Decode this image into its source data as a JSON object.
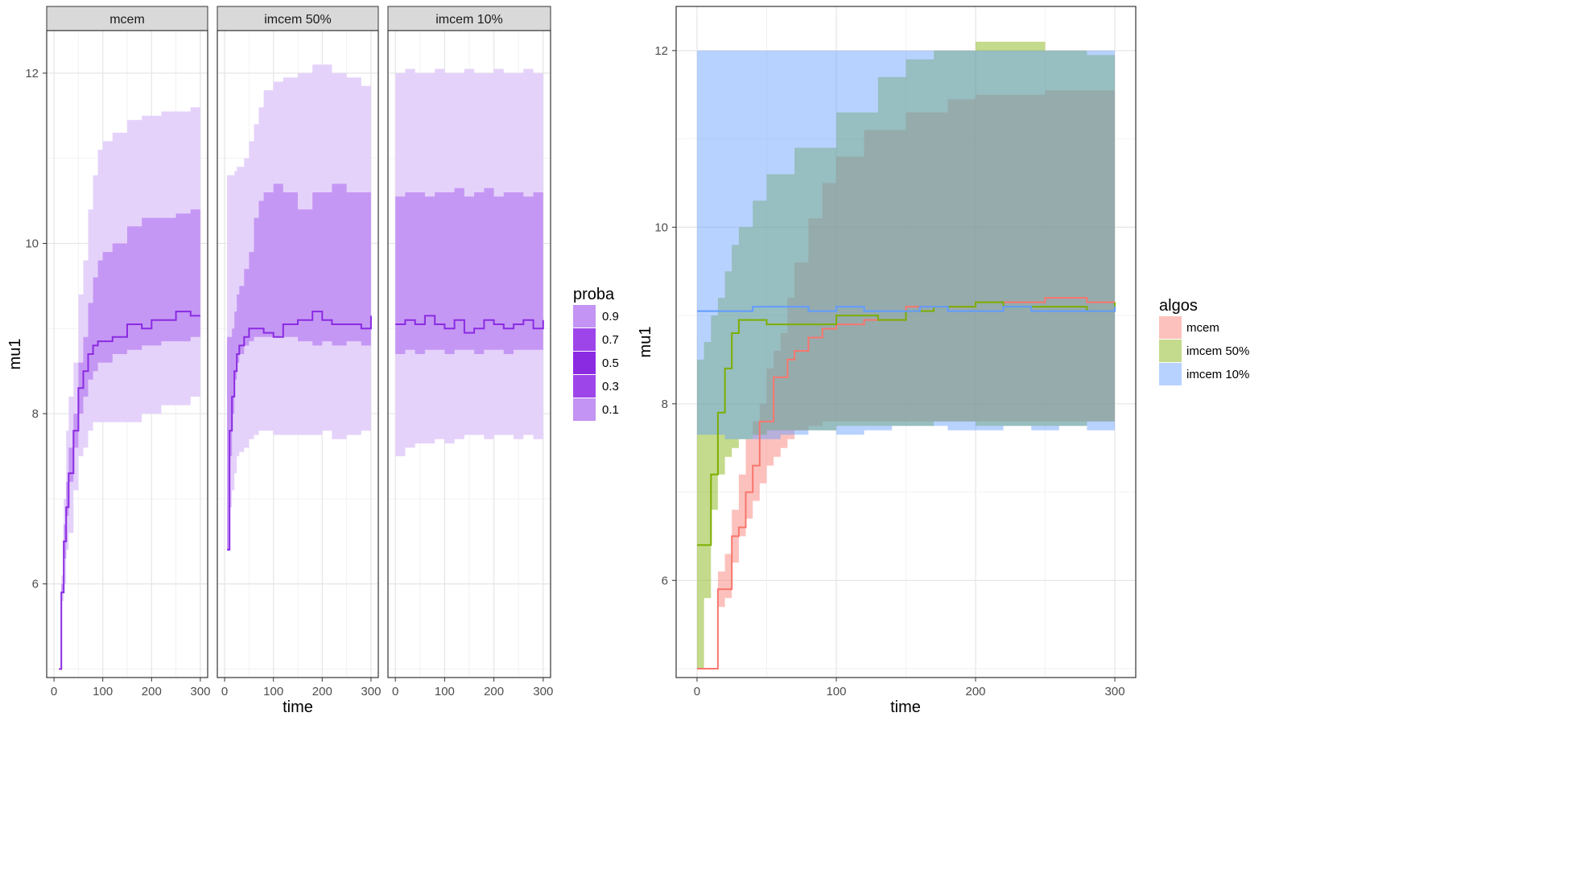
{
  "chart_data": [
    {
      "type": "area",
      "facets": [
        "mcem",
        "imcem 50%",
        "imcem 10%"
      ],
      "xlabel": "time",
      "ylabel": "mu1",
      "xlim": [
        -15,
        315
      ],
      "ylim": [
        4.9,
        12.5
      ],
      "xticks": [
        0,
        100,
        200,
        300
      ],
      "yticks": [
        6,
        8,
        10,
        12
      ],
      "grid": true,
      "legend": {
        "title": "proba",
        "position": "right",
        "entries": [
          "0.9",
          "0.7",
          "0.5",
          "0.3",
          "0.1"
        ],
        "colors": [
          "#c394f3",
          "#9e45e9",
          "#8a2be2",
          "#9e45e9",
          "#c394f3"
        ]
      },
      "band_colors": {
        "outer": "#e4d0fa",
        "inner": "#c394f3",
        "median": "#8a2be2"
      },
      "series": [
        {
          "facet": "mcem",
          "x": [
            10,
            15,
            20,
            25,
            30,
            40,
            50,
            60,
            70,
            80,
            90,
            100,
            120,
            150,
            180,
            200,
            220,
            250,
            280,
            300
          ],
          "p10": [
            5.0,
            5.8,
            6.0,
            6.4,
            6.6,
            7.1,
            7.5,
            7.6,
            7.8,
            7.9,
            7.9,
            7.9,
            7.9,
            7.9,
            8.0,
            8.0,
            8.1,
            8.1,
            8.2,
            8.2
          ],
          "p30": [
            5.0,
            5.9,
            6.3,
            6.8,
            7.2,
            7.6,
            8.0,
            8.2,
            8.4,
            8.5,
            8.6,
            8.6,
            8.7,
            8.75,
            8.8,
            8.8,
            8.85,
            8.85,
            8.9,
            8.9
          ],
          "median": [
            5.0,
            5.9,
            6.5,
            6.9,
            7.3,
            7.8,
            8.3,
            8.5,
            8.7,
            8.8,
            8.85,
            8.85,
            8.9,
            9.05,
            9.0,
            9.1,
            9.1,
            9.2,
            9.15,
            9.15
          ],
          "p70": [
            5.0,
            6.0,
            6.7,
            7.2,
            7.6,
            8.0,
            8.6,
            8.9,
            9.3,
            9.6,
            9.8,
            9.9,
            10.0,
            10.2,
            10.3,
            10.3,
            10.3,
            10.35,
            10.4,
            10.4
          ],
          "p90": [
            5.0,
            6.1,
            7.0,
            7.8,
            8.2,
            8.6,
            9.4,
            9.8,
            10.4,
            10.8,
            11.1,
            11.2,
            11.3,
            11.45,
            11.5,
            11.5,
            11.55,
            11.55,
            11.6,
            11.6
          ]
        },
        {
          "facet": "imcem 50%",
          "x": [
            5,
            10,
            15,
            20,
            25,
            30,
            40,
            50,
            60,
            70,
            80,
            100,
            120,
            150,
            180,
            200,
            220,
            250,
            280,
            300
          ],
          "p10": [
            6.4,
            6.9,
            7.1,
            7.3,
            7.5,
            7.55,
            7.6,
            7.7,
            7.75,
            7.8,
            7.8,
            7.75,
            7.75,
            7.75,
            7.75,
            7.8,
            7.7,
            7.75,
            7.8,
            7.95
          ],
          "p30": [
            6.4,
            7.5,
            8.0,
            8.4,
            8.6,
            8.7,
            8.8,
            8.85,
            8.9,
            8.9,
            8.9,
            8.9,
            8.9,
            8.85,
            8.8,
            8.85,
            8.8,
            8.85,
            8.8,
            8.8
          ],
          "median": [
            6.4,
            7.8,
            8.2,
            8.5,
            8.7,
            8.8,
            8.9,
            9.0,
            9.0,
            9.0,
            8.95,
            8.9,
            9.05,
            9.1,
            9.2,
            9.1,
            9.05,
            9.05,
            9.0,
            9.15
          ],
          "p70": [
            8.9,
            8.9,
            9.0,
            9.2,
            9.4,
            9.5,
            9.7,
            9.9,
            10.3,
            10.5,
            10.6,
            10.7,
            10.6,
            10.4,
            10.6,
            10.6,
            10.7,
            10.6,
            10.6,
            10.6
          ],
          "p90": [
            10.8,
            10.8,
            10.8,
            10.85,
            10.9,
            10.9,
            11.0,
            11.2,
            11.4,
            11.6,
            11.8,
            11.9,
            11.95,
            12.0,
            12.1,
            12.1,
            12.0,
            11.95,
            11.85,
            11.95
          ]
        },
        {
          "facet": "imcem 10%",
          "x": [
            0,
            20,
            40,
            60,
            80,
            100,
            120,
            140,
            160,
            180,
            200,
            220,
            240,
            260,
            280,
            300
          ],
          "p10": [
            7.5,
            7.6,
            7.65,
            7.65,
            7.7,
            7.65,
            7.7,
            7.75,
            7.75,
            7.7,
            7.75,
            7.75,
            7.7,
            7.75,
            7.7,
            7.7
          ],
          "p30": [
            8.7,
            8.75,
            8.7,
            8.75,
            8.75,
            8.7,
            8.75,
            8.75,
            8.7,
            8.75,
            8.75,
            8.7,
            8.75,
            8.75,
            8.75,
            8.75
          ],
          "median": [
            9.05,
            9.1,
            9.05,
            9.15,
            9.05,
            9.0,
            9.1,
            8.95,
            9.0,
            9.1,
            9.05,
            9.0,
            9.05,
            9.1,
            9.0,
            9.1
          ],
          "p70": [
            10.55,
            10.6,
            10.6,
            10.55,
            10.6,
            10.6,
            10.65,
            10.55,
            10.6,
            10.65,
            10.55,
            10.6,
            10.6,
            10.55,
            10.6,
            10.6
          ],
          "p90": [
            12.0,
            12.05,
            12.0,
            12.0,
            12.05,
            12.0,
            12.0,
            12.05,
            12.0,
            12.0,
            12.05,
            12.0,
            12.0,
            12.05,
            12.0,
            12.0
          ]
        }
      ]
    },
    {
      "type": "area",
      "xlabel": "time",
      "ylabel": "mu1",
      "xlim": [
        -15,
        315
      ],
      "ylim": [
        4.9,
        12.5
      ],
      "xticks": [
        0,
        100,
        200,
        300
      ],
      "yticks": [
        6,
        8,
        10,
        12
      ],
      "grid": true,
      "legend": {
        "title": "algos",
        "position": "right",
        "entries": [
          "mcem",
          "imcem 50%",
          "imcem 10%"
        ]
      },
      "series": [
        {
          "name": "mcem",
          "color": "#f8766d",
          "x": [
            0,
            10,
            15,
            20,
            25,
            30,
            35,
            40,
            45,
            50,
            55,
            60,
            65,
            70,
            80,
            90,
            100,
            120,
            150,
            180,
            200,
            250,
            280,
            300
          ],
          "lower": [
            5.0,
            5.0,
            5.7,
            5.8,
            6.2,
            6.5,
            6.7,
            6.9,
            7.1,
            7.3,
            7.4,
            7.5,
            7.6,
            7.7,
            7.75,
            7.8,
            7.8,
            7.8,
            7.8,
            7.8,
            7.8,
            7.8,
            7.8,
            7.8
          ],
          "mid": [
            5.0,
            5.0,
            5.9,
            5.9,
            6.5,
            6.6,
            7.0,
            7.3,
            7.8,
            7.8,
            8.3,
            8.3,
            8.5,
            8.6,
            8.75,
            8.85,
            8.9,
            8.95,
            9.1,
            9.1,
            9.15,
            9.2,
            9.15,
            9.15
          ],
          "upper": [
            5.0,
            5.0,
            6.1,
            6.3,
            6.8,
            7.2,
            7.6,
            7.8,
            8.0,
            8.4,
            8.6,
            8.8,
            9.2,
            9.6,
            10.1,
            10.5,
            10.8,
            11.1,
            11.3,
            11.45,
            11.5,
            11.55,
            11.55,
            11.6
          ]
        },
        {
          "name": "imcem 50%",
          "color": "#7cae00",
          "x": [
            0,
            5,
            10,
            15,
            20,
            25,
            30,
            40,
            50,
            70,
            100,
            130,
            150,
            170,
            200,
            220,
            250,
            280,
            300
          ],
          "lower": [
            5.0,
            5.8,
            6.8,
            7.2,
            7.4,
            7.5,
            7.6,
            7.65,
            7.7,
            7.7,
            7.75,
            7.75,
            7.75,
            7.8,
            7.75,
            7.75,
            7.75,
            7.8,
            7.85
          ],
          "mid": [
            6.4,
            6.4,
            7.2,
            7.9,
            8.4,
            8.8,
            8.95,
            8.95,
            8.9,
            8.9,
            9.0,
            8.95,
            9.05,
            9.1,
            9.15,
            9.1,
            9.1,
            9.05,
            9.15
          ],
          "upper": [
            8.5,
            8.7,
            9.0,
            9.2,
            9.5,
            9.8,
            10.0,
            10.3,
            10.6,
            10.9,
            11.3,
            11.7,
            11.9,
            12.0,
            12.1,
            12.1,
            12.0,
            11.95,
            12.0
          ]
        },
        {
          "name": "imcem 10%",
          "color": "#619cff",
          "x": [
            0,
            20,
            40,
            60,
            80,
            100,
            120,
            140,
            160,
            180,
            200,
            220,
            240,
            260,
            280,
            300
          ],
          "lower": [
            7.65,
            7.6,
            7.6,
            7.65,
            7.7,
            7.65,
            7.7,
            7.75,
            7.75,
            7.7,
            7.7,
            7.75,
            7.7,
            7.75,
            7.7,
            7.7
          ],
          "mid": [
            9.05,
            9.05,
            9.1,
            9.1,
            9.05,
            9.1,
            9.05,
            9.05,
            9.1,
            9.05,
            9.05,
            9.1,
            9.05,
            9.05,
            9.05,
            9.1
          ],
          "upper": [
            12.0,
            12.0,
            12.0,
            12.0,
            12.0,
            12.0,
            12.0,
            12.0,
            12.0,
            12.0,
            12.0,
            12.0,
            12.0,
            12.0,
            12.0,
            12.0
          ]
        }
      ]
    }
  ]
}
